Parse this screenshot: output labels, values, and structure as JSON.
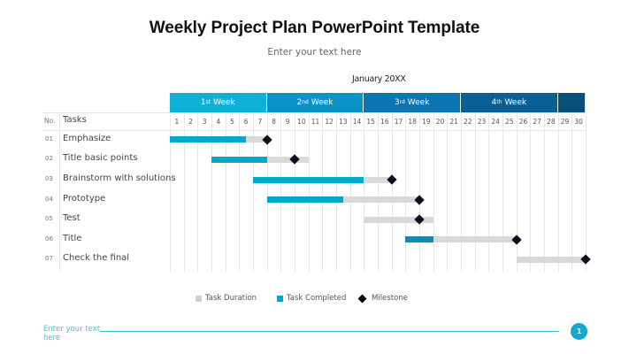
{
  "slide": {
    "title": "Weekly Project Plan PowerPoint Template",
    "subtitle": "Enter your text here",
    "month": "January 20XX"
  },
  "gantt": {
    "weeks": [
      {
        "num": "1",
        "sup": "st",
        "label": "Week",
        "start": 1,
        "end": 7,
        "color": "#0fb0d6"
      },
      {
        "num": "2",
        "sup": "nd",
        "label": "Week",
        "start": 8,
        "end": 14,
        "color": "#0b93c9"
      },
      {
        "num": "3",
        "sup": "rd",
        "label": "Week",
        "start": 15,
        "end": 21,
        "color": "#0a75b0"
      },
      {
        "num": "4",
        "sup": "th",
        "label": "Week",
        "start": 22,
        "end": 28,
        "color": "#0a5f95"
      },
      {
        "num": "",
        "sup": "",
        "label": "",
        "start": 29,
        "end": 30,
        "color": "#0a4f7a"
      }
    ],
    "header_no": "No.",
    "header_tasks": "Tasks",
    "days": [
      1,
      2,
      3,
      4,
      5,
      6,
      7,
      8,
      9,
      10,
      11,
      12,
      13,
      14,
      15,
      16,
      17,
      18,
      19,
      20,
      21,
      22,
      23,
      24,
      25,
      26,
      27,
      28,
      29,
      30
    ],
    "tasks": [
      {
        "no": "01",
        "name": "Emphasize",
        "duration": [
          1,
          7
        ],
        "completed": [
          1,
          5.5
        ],
        "milestone": 7
      },
      {
        "no": "02",
        "name": "Title  basic points",
        "duration": [
          4,
          10
        ],
        "completed": [
          4,
          7
        ],
        "milestone": 9
      },
      {
        "no": "03",
        "name": "Brainstorm with solutions",
        "duration": [
          7,
          16
        ],
        "completed": [
          7,
          14
        ],
        "milestone": 16
      },
      {
        "no": "04",
        "name": "Prototype",
        "duration": [
          8,
          18
        ],
        "completed": [
          8,
          12.5
        ],
        "milestone": 18
      },
      {
        "no": "05",
        "name": "Test",
        "duration": [
          15,
          19
        ],
        "completed": null,
        "milestone": 18
      },
      {
        "no": "06",
        "name": "Title",
        "duration": [
          18,
          25
        ],
        "completed": [
          18,
          19
        ],
        "milestone": 25
      },
      {
        "no": "07",
        "name": "Check the final",
        "duration": [
          26,
          30
        ],
        "completed": null,
        "milestone": 30
      }
    ]
  },
  "legend": {
    "duration_label": "Task Duration",
    "completed_label": "Task Completed",
    "milestone_label": "Milestone"
  },
  "footer": {
    "text": "Enter your text here",
    "page_number": "1"
  },
  "colors": {
    "duration": "#d9d9d9",
    "completed": "#00a8cc",
    "milestone": "#0a0f1e",
    "accent_line": "#3cb6c7"
  }
}
